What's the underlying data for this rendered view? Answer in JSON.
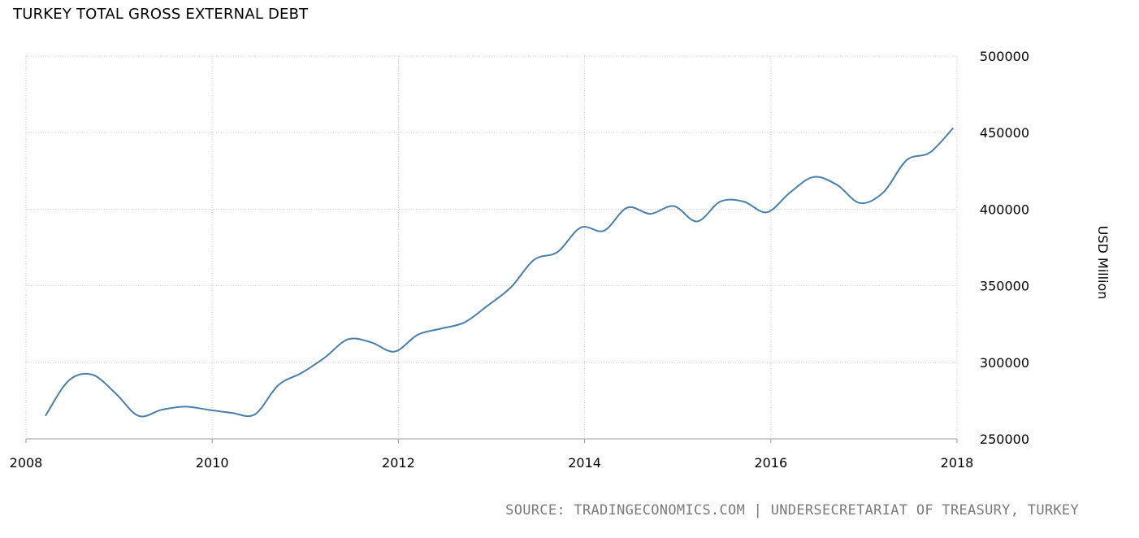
{
  "chart_data": {
    "type": "line",
    "title": "TURKEY TOTAL GROSS EXTERNAL DEBT",
    "ylabel": "USD Million",
    "xlabel": "",
    "x_ticks": [
      "2008",
      "2010",
      "2012",
      "2014",
      "2016",
      "2018"
    ],
    "y_ticks": [
      "250000",
      "300000",
      "350000",
      "400000",
      "450000",
      "500000"
    ],
    "xlim": [
      2008,
      2018
    ],
    "ylim": [
      250000,
      500000
    ],
    "grid": true,
    "line_color": "#4a7fab",
    "series": [
      {
        "x": [
          "2008-03",
          "2008-06",
          "2008-09",
          "2008-12",
          "2009-03",
          "2009-06",
          "2009-09",
          "2009-12",
          "2010-03",
          "2010-06",
          "2010-09",
          "2010-12",
          "2011-03",
          "2011-06",
          "2011-09",
          "2011-12",
          "2012-03",
          "2012-06",
          "2012-09",
          "2012-12",
          "2013-03",
          "2013-06",
          "2013-09",
          "2013-12",
          "2014-03",
          "2014-06",
          "2014-09",
          "2014-12",
          "2015-03",
          "2015-06",
          "2015-09",
          "2015-12",
          "2016-03",
          "2016-06",
          "2016-09",
          "2016-12",
          "2017-03",
          "2017-06",
          "2017-09",
          "2017-12"
        ],
        "values": [
          265000,
          288000,
          292000,
          280000,
          265000,
          269000,
          271000,
          269000,
          267000,
          266000,
          285000,
          293000,
          303000,
          315000,
          313000,
          307000,
          318000,
          322000,
          326000,
          337000,
          349000,
          367000,
          372000,
          388000,
          386000,
          401000,
          397000,
          402000,
          392000,
          405000,
          405000,
          398000,
          411000,
          421000,
          416000,
          404000,
          411000,
          432000,
          437000,
          453000
        ]
      }
    ]
  },
  "source": {
    "text": "SOURCE: TRADINGECONOMICS.COM | UNDERSECRETARIAT OF TREASURY, TURKEY"
  }
}
